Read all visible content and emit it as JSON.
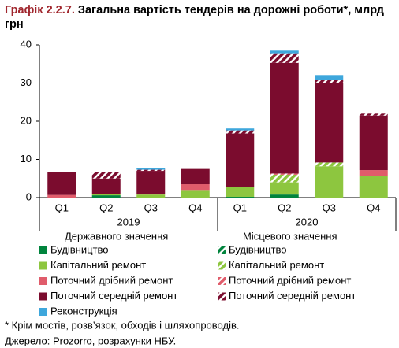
{
  "chart_data": {
    "type": "stacked_bar",
    "title_number": "Графік 2.2.7.",
    "title": "Загальна вартість тендерів на дорожні роботи*, млрд грн",
    "categories": [
      "Q1",
      "Q2",
      "Q3",
      "Q4",
      "Q1",
      "Q2",
      "Q3",
      "Q4"
    ],
    "groups": [
      "2019",
      "2020"
    ],
    "legend_groups": [
      "Державного значення",
      "Місцевого значення"
    ],
    "series": [
      {
        "name": "Будівництво",
        "color": "#00843d",
        "hatch": false,
        "values": [
          0,
          0.6,
          0,
          0,
          0.2,
          0.8,
          0,
          0
        ]
      },
      {
        "name": "Будівництво",
        "color": "#00843d",
        "hatch": true,
        "values": [
          0,
          0,
          0,
          0,
          0,
          0,
          0,
          0
        ]
      },
      {
        "name": "Капітальний ремонт",
        "color": "#8dc63f",
        "hatch": false,
        "values": [
          0,
          0.4,
          0.8,
          2,
          2.6,
          3.2,
          8.2,
          5.7
        ]
      },
      {
        "name": "Капітальний ремонт",
        "color": "#8dc63f",
        "hatch": true,
        "values": [
          0,
          0,
          0,
          0,
          0,
          2,
          1,
          0
        ]
      },
      {
        "name": "Поточний дрібний ремонт",
        "color": "#e05c6b",
        "hatch": false,
        "values": [
          0.7,
          0,
          0.2,
          1.5,
          0,
          0,
          0,
          1.5
        ]
      },
      {
        "name": "Поточний дрібний ремонт",
        "color": "#e05c6b",
        "hatch": true,
        "values": [
          0,
          0,
          0,
          0,
          0,
          0.3,
          0,
          0
        ]
      },
      {
        "name": "Поточний середній ремонт",
        "color": "#7b0c2e",
        "hatch": false,
        "values": [
          6,
          4,
          6,
          4,
          14,
          29,
          20.8,
          14.3
        ]
      },
      {
        "name": "Поточний середній ремонт",
        "color": "#7b0c2e",
        "hatch": true,
        "values": [
          0,
          1.7,
          0.3,
          0,
          0.8,
          2.5,
          0.8,
          0.5
        ]
      },
      {
        "name": "Реконструкція",
        "color": "#3ea7dc",
        "hatch": false,
        "values": [
          0,
          0,
          0.5,
          0,
          0.5,
          0.7,
          1.3,
          0
        ]
      }
    ],
    "ylim": [
      0,
      40
    ],
    "yticks": [
      0,
      10,
      20,
      30,
      40
    ],
    "footnotes": [
      "* Крім мостів, розв’язок, обходів і шляхопроводів.",
      "Джерело: Prozorro, розрахунки НБУ."
    ]
  }
}
